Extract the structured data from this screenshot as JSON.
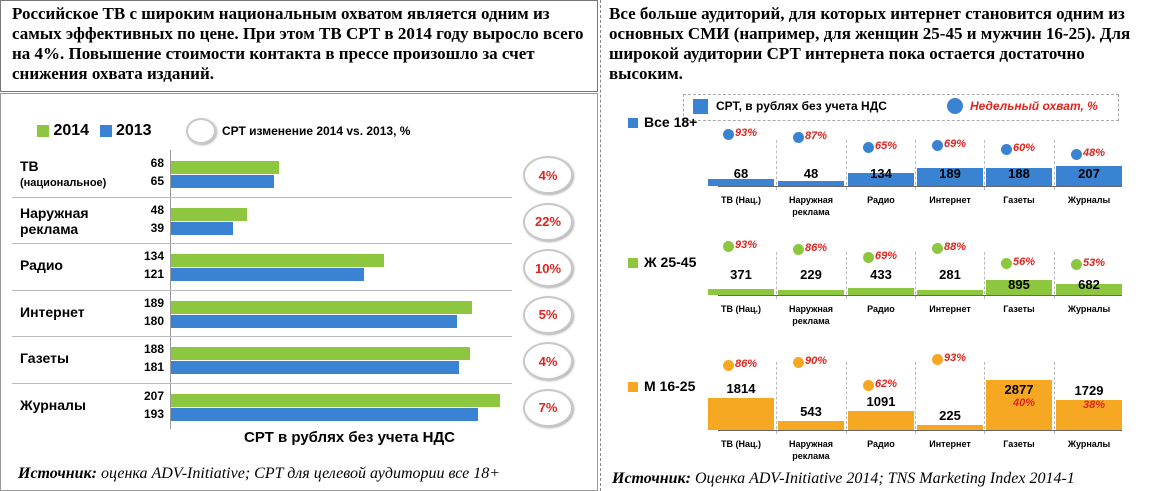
{
  "left_header": "Российское ТВ с широким национальным охватом является одним из самых эффективных по цене. При этом ТВ СРТ в 2014 году выросло всего на 4%. Повышение стоимости контакта в прессе произошло за счет снижения охвата изданий.",
  "right_header": "Все больше аудиторий, для которых интернет становится одним из основных СМИ (например, для женщин 25-45 и мужчин 16-25). Для широкой аудитории СРТ интернета пока остается достаточно высоким.",
  "left_source": {
    "label": "Источник:",
    "text": " оценка ADV-Initiative; CPT для целевой аудитории все 18+"
  },
  "right_source": {
    "label": "Источник:",
    "text": " Оценка ADV-Initiative 2014; TNS Marketing Index 2014-1"
  },
  "colors": {
    "green": "#8dc63f",
    "blue": "#3a83d3",
    "orange": "#f7a823",
    "red": "#e0251f"
  },
  "left_legend": {
    "s2014": "2014",
    "s2013": "2013",
    "change": "СРТ изменение 2014 vs. 2013, %"
  },
  "right_legend": {
    "bar": "СРТ, в рублях без учета НДС",
    "dot": "Недельный охват, %"
  },
  "chart_data": [
    {
      "type": "bar",
      "orientation": "horizontal",
      "title": "СРТ в рублях без учета НДС",
      "categories": [
        {
          "label": "ТВ",
          "sub": "(национальное)"
        },
        {
          "label": "Наружная",
          "sub": "реклама"
        },
        {
          "label": "Радио",
          "sub": ""
        },
        {
          "label": "Интернет",
          "sub": ""
        },
        {
          "label": "Газеты",
          "sub": ""
        },
        {
          "label": "Журналы",
          "sub": ""
        }
      ],
      "series": [
        {
          "name": "2014",
          "values": [
            68,
            48,
            134,
            189,
            188,
            207
          ]
        },
        {
          "name": "2013",
          "values": [
            65,
            39,
            121,
            180,
            181,
            193
          ]
        }
      ],
      "change_pct": [
        "4%",
        "22%",
        "10%",
        "5%",
        "4%",
        "7%"
      ]
    },
    {
      "type": "bar",
      "categories": [
        "ТВ (Нац.)",
        "Наружная реклама",
        "Радио",
        "Интернет",
        "Газеты",
        "Журналы"
      ],
      "groups": [
        {
          "name": "Все 18+",
          "color": "#3a83d3",
          "cpt": [
            68,
            48,
            134,
            189,
            188,
            207
          ],
          "reach": [
            "93%",
            "87%",
            "65%",
            "69%",
            "60%",
            "48%"
          ]
        },
        {
          "name": "Ж 25-45",
          "color": "#8dc63f",
          "cpt": [
            371,
            229,
            433,
            281,
            895,
            682
          ],
          "reach": [
            "93%",
            "86%",
            "69%",
            "88%",
            "56%",
            "53%"
          ]
        },
        {
          "name": "М 16-25",
          "color": "#f7a823",
          "cpt": [
            1814,
            543,
            1091,
            225,
            2877,
            1729
          ],
          "reach": [
            "86%",
            "90%",
            "62%",
            "93%",
            "40%",
            "38%"
          ]
        }
      ]
    }
  ]
}
